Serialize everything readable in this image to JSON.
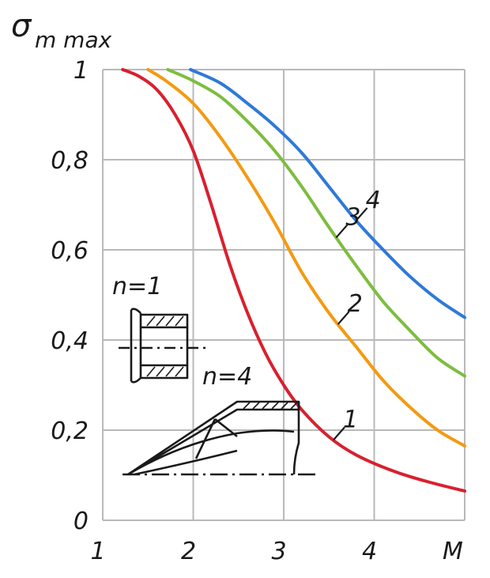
{
  "chart_data": {
    "type": "line",
    "title": "σ",
    "title_subscript": "m max",
    "xlabel": "M",
    "ylabel": "",
    "xlim": [
      1,
      5
    ],
    "ylim": [
      0,
      1
    ],
    "x_ticks": [
      "1",
      "2",
      "3",
      "4"
    ],
    "y_ticks": [
      "0",
      "0,2",
      "0,4",
      "0,6",
      "0,8",
      "1"
    ],
    "grid": true,
    "series": [
      {
        "name": "1",
        "color": "#d8202f",
        "x": [
          1.22,
          1.4,
          1.6,
          1.8,
          2.0,
          2.2,
          2.4,
          2.6,
          2.8,
          3.0,
          3.2,
          3.5,
          3.8,
          4.2,
          4.6,
          5.0
        ],
        "y": [
          1.0,
          0.985,
          0.955,
          0.9,
          0.82,
          0.7,
          0.57,
          0.46,
          0.37,
          0.3,
          0.245,
          0.185,
          0.145,
          0.11,
          0.085,
          0.065
        ]
      },
      {
        "name": "2",
        "color": "#f39a12",
        "x": [
          1.5,
          1.7,
          2.0,
          2.3,
          2.6,
          2.9,
          3.2,
          3.5,
          3.8,
          4.1,
          4.4,
          4.7,
          5.0
        ],
        "y": [
          1.0,
          0.975,
          0.925,
          0.85,
          0.76,
          0.66,
          0.55,
          0.46,
          0.385,
          0.31,
          0.25,
          0.2,
          0.165
        ]
      },
      {
        "name": "3",
        "color": "#7dbd3f",
        "x": [
          1.72,
          2.0,
          2.3,
          2.6,
          2.9,
          3.2,
          3.5,
          3.8,
          4.1,
          4.4,
          4.7,
          5.0
        ],
        "y": [
          1.0,
          0.975,
          0.94,
          0.885,
          0.82,
          0.74,
          0.65,
          0.565,
          0.485,
          0.42,
          0.36,
          0.32
        ]
      },
      {
        "name": "4",
        "color": "#2f79d8",
        "x": [
          1.97,
          2.3,
          2.6,
          2.9,
          3.2,
          3.5,
          3.8,
          4.1,
          4.4,
          4.7,
          5.0
        ],
        "y": [
          1.0,
          0.97,
          0.925,
          0.875,
          0.815,
          0.74,
          0.665,
          0.6,
          0.54,
          0.49,
          0.45
        ]
      }
    ],
    "annotations": [
      {
        "text": "n=1"
      },
      {
        "text": "n=4"
      }
    ]
  }
}
